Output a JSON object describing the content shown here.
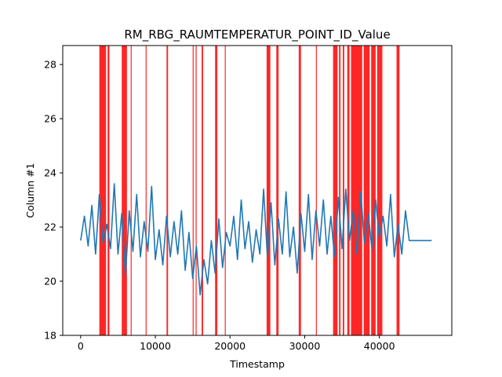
{
  "chart_data": {
    "type": "line",
    "title": "RM_RBG_RAUMTEMPERATUR_POINT_ID_Value",
    "xlabel": "Timestamp",
    "ylabel": "Column #1",
    "xlim": [
      -2400,
      49700
    ],
    "ylim": [
      18,
      28.7
    ],
    "x_ticks": [
      0,
      10000,
      20000,
      30000,
      40000
    ],
    "x_tick_labels": [
      "0",
      "10000",
      "20000",
      "30000",
      "40000"
    ],
    "y_ticks": [
      18,
      20,
      22,
      24,
      26,
      28
    ],
    "y_tick_labels": [
      "18",
      "20",
      "22",
      "24",
      "26",
      "28"
    ],
    "grid": false,
    "legend": "none",
    "colors": {
      "line": "#1f77b4",
      "anomaly": "#ff0000",
      "axes": "#000000",
      "background": "#ffffff"
    },
    "series": [
      {
        "x": [
          0,
          500,
          1000,
          1500,
          2000,
          2500,
          3000,
          3500,
          4000,
          4500,
          5000,
          5500,
          6000,
          6500,
          7000,
          7500,
          8000,
          8500,
          9000,
          9500,
          10000,
          10500,
          11000,
          11500,
          12000,
          12500,
          13000,
          13500,
          14000,
          14500,
          15000,
          15500,
          16000,
          16500,
          17000,
          17500,
          18000,
          18500,
          19000,
          19500,
          20000,
          20500,
          21000,
          21500,
          22000,
          22500,
          23000,
          23500,
          24000,
          24500,
          25000,
          25500,
          26000,
          26500,
          27000,
          27500,
          28000,
          28500,
          29000,
          29500,
          30000,
          30500,
          31000,
          31500,
          32000,
          32500,
          33000,
          33500,
          34000,
          34500,
          35000,
          35500,
          36000,
          36500,
          37000,
          37500,
          38000,
          38500,
          39000,
          39500,
          40000,
          40500,
          41000,
          41500,
          42000,
          42500,
          43000,
          43500,
          44000,
          47000
        ],
        "values": [
          21.5,
          22.4,
          21.3,
          22.8,
          21.0,
          23.2,
          21.4,
          22.1,
          21.2,
          23.6,
          21.0,
          22.5,
          20.2,
          22.6,
          21.1,
          23.2,
          20.9,
          22.2,
          21.1,
          23.5,
          20.8,
          21.9,
          20.6,
          22.4,
          20.9,
          22.2,
          21.0,
          22.6,
          20.4,
          21.8,
          20.1,
          21.3,
          19.5,
          20.8,
          19.9,
          21.5,
          20.3,
          22.3,
          20.5,
          21.8,
          21.3,
          22.4,
          20.8,
          23.0,
          21.2,
          22.2,
          20.7,
          21.9,
          21.0,
          23.4,
          20.9,
          22.9,
          20.6,
          22.3,
          21.0,
          23.3,
          20.9,
          22.0,
          20.3,
          22.5,
          21.1,
          23.2,
          20.8,
          22.6,
          21.3,
          23.0,
          21.0,
          22.4,
          20.9,
          23.1,
          21.2,
          23.4,
          21.5,
          22.6,
          21.0,
          23.3,
          21.4,
          22.5,
          21.2,
          23.0,
          21.6,
          22.4,
          21.3,
          23.2,
          20.9,
          22.1,
          21.0,
          22.6,
          21.5,
          21.5
        ]
      }
    ],
    "anomaly_regions": [
      [
        2500,
        3400
      ],
      [
        3600,
        3850
      ],
      [
        5500,
        6200
      ],
      [
        6700,
        6800
      ],
      [
        8700,
        8750
      ],
      [
        11500,
        11700
      ],
      [
        15000,
        15100
      ],
      [
        15400,
        15500
      ],
      [
        16200,
        16400
      ],
      [
        18000,
        18300
      ],
      [
        19300,
        19400
      ],
      [
        24900,
        25400
      ],
      [
        26200,
        26500
      ],
      [
        29200,
        29500
      ],
      [
        31500,
        31600
      ],
      [
        33800,
        34400
      ],
      [
        34600,
        34800
      ],
      [
        35100,
        35300
      ],
      [
        35700,
        36000
      ],
      [
        36200,
        37700
      ],
      [
        37900,
        38700
      ],
      [
        38900,
        39500
      ],
      [
        39700,
        40400
      ],
      [
        42300,
        42700
      ]
    ]
  }
}
